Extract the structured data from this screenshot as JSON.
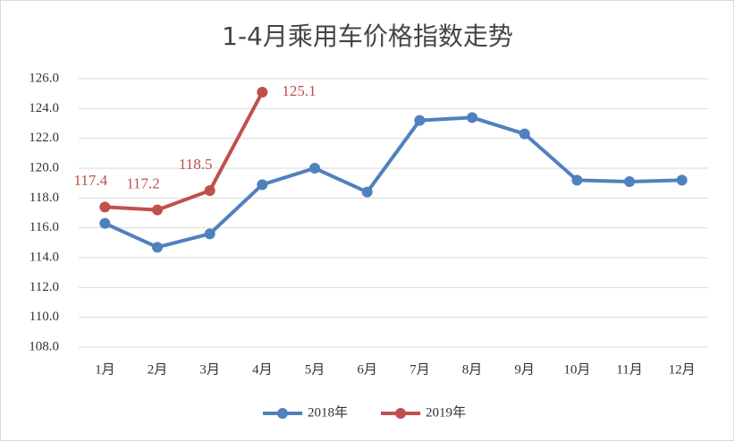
{
  "chart_data": {
    "type": "line",
    "title": "1-4月乘用车价格指数走势",
    "categories": [
      "1月",
      "2月",
      "3月",
      "4月",
      "5月",
      "6月",
      "7月",
      "8月",
      "9月",
      "10月",
      "11月",
      "12月"
    ],
    "series": [
      {
        "name": "2018年",
        "color": "#4f81bd",
        "values": [
          116.3,
          114.7,
          115.6,
          118.9,
          120.0,
          118.4,
          123.2,
          123.4,
          122.3,
          119.2,
          119.1,
          119.2
        ]
      },
      {
        "name": "2019年",
        "color": "#c0504d",
        "values": [
          117.4,
          117.2,
          118.5,
          125.1,
          null,
          null,
          null,
          null,
          null,
          null,
          null,
          null
        ],
        "data_labels": true
      }
    ],
    "ylim": [
      108,
      126
    ],
    "yticks": [
      {
        "value": 108,
        "label": "108.0"
      },
      {
        "value": 110,
        "label": "110.0"
      },
      {
        "value": 112,
        "label": "112.0"
      },
      {
        "value": 114,
        "label": "114.0"
      },
      {
        "value": 116,
        "label": "116.0"
      },
      {
        "value": 118,
        "label": "118.0"
      },
      {
        "value": 120,
        "label": "120.0"
      },
      {
        "value": 122,
        "label": "122.0"
      },
      {
        "value": 124,
        "label": "124.0"
      },
      {
        "value": 126,
        "label": "126.0"
      }
    ],
    "grid": true,
    "legend": "bottom"
  }
}
